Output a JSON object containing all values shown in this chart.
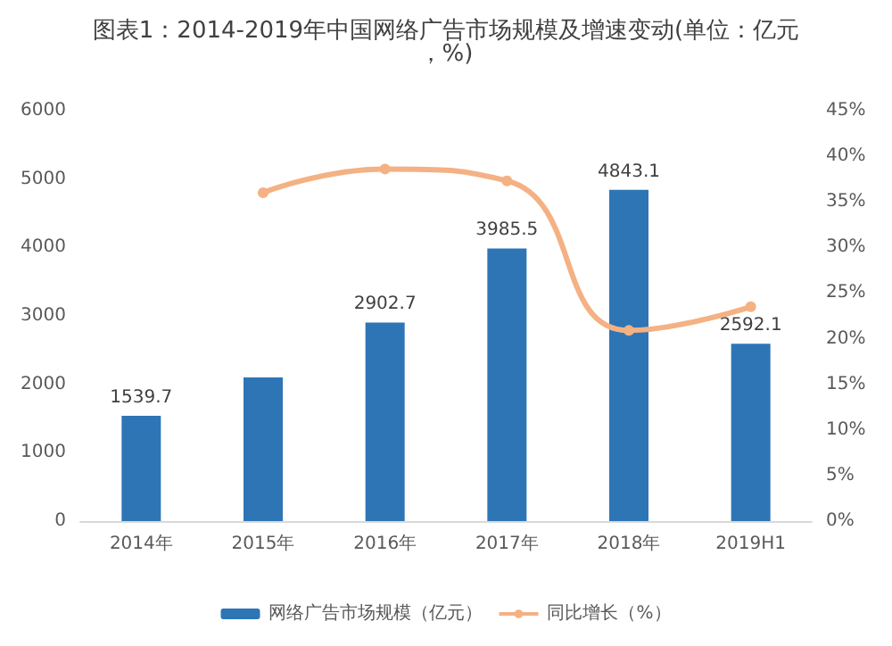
{
  "chart_data": {
    "type": "bar",
    "title": "图表1：2014-2019年中国网络广告市场规模及增速变动(单位：亿元，%)",
    "categories": [
      "2014年",
      "2015年",
      "2016年",
      "2017年",
      "2018年",
      "2019H1"
    ],
    "series": [
      {
        "name": "网络广告市场规模（亿元）",
        "color": "#2e75b6",
        "values": [
          1539.7,
          2100,
          2902.7,
          3985.5,
          4843.1,
          2592.1
        ],
        "value_labels": [
          "1539.7",
          null,
          "2902.7",
          "3985.5",
          "4843.1",
          "2592.1"
        ]
      },
      {
        "name": "同比增长（%）",
        "type": "line",
        "axis": "y2",
        "color": "#f4b183",
        "values": [
          null,
          36,
          38.6,
          37.3,
          20.9,
          23.5
        ]
      }
    ],
    "ylim": [
      0,
      6000
    ],
    "yticks": [
      0,
      1000,
      2000,
      3000,
      4000,
      5000,
      6000
    ],
    "y2lim": [
      0,
      45
    ],
    "y2ticks": [
      {
        "value": 0,
        "label": "0%"
      },
      {
        "value": 5,
        "label": "5%"
      },
      {
        "value": 10,
        "label": "10%"
      },
      {
        "value": 15,
        "label": "15%"
      },
      {
        "value": 20,
        "label": "20%"
      },
      {
        "value": 25,
        "label": "25%"
      },
      {
        "value": 30,
        "label": "30%"
      },
      {
        "value": 35,
        "label": "35%"
      },
      {
        "value": 40,
        "label": "40%"
      },
      {
        "value": 45,
        "label": "45%"
      }
    ],
    "grid": false,
    "legend": "bottom",
    "marker": "circle"
  }
}
